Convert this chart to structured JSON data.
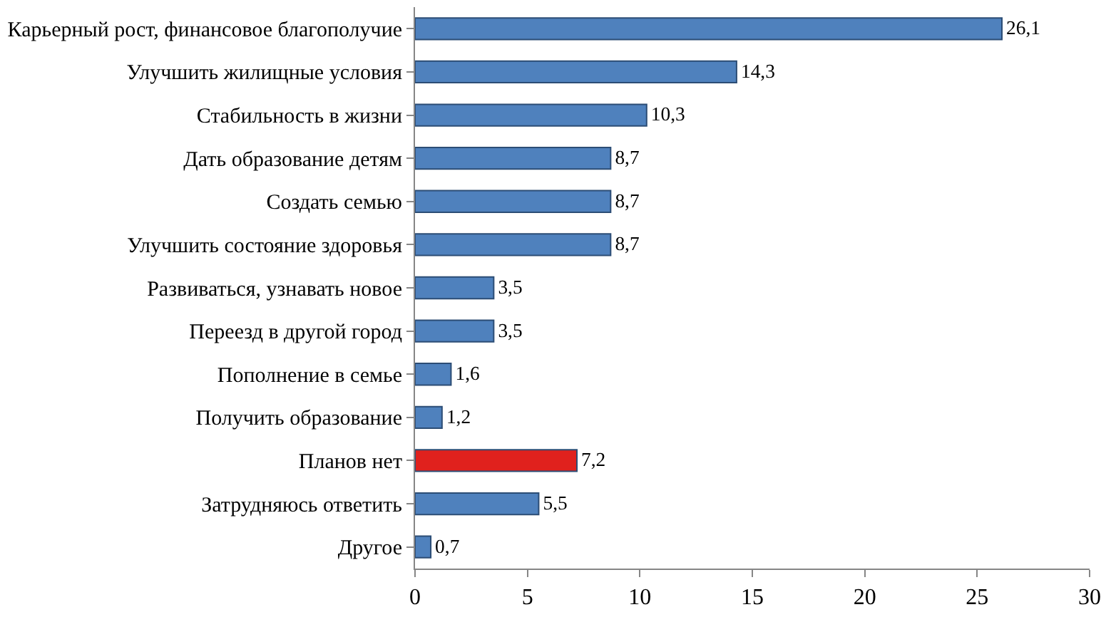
{
  "chart_data": {
    "type": "bar",
    "orientation": "horizontal",
    "categories": [
      "Карьерный рост, финансовое благополучие",
      "Улучшить жилищные условия",
      "Стабильность в жизни",
      "Дать образование детям",
      "Создать семью",
      "Улучшить состояние здоровья",
      "Развиваться, узнавать новое",
      "Переезд в другой город",
      "Пополнение в семье",
      "Получить образование",
      "Планов нет",
      "Затрудняюсь ответить",
      "Другое"
    ],
    "values": [
      26.1,
      14.3,
      10.3,
      8.7,
      8.7,
      8.7,
      3.5,
      3.5,
      1.6,
      1.2,
      7.2,
      5.5,
      0.7
    ],
    "value_labels": [
      "26,1",
      "14,3",
      "10,3",
      "8,7",
      "8,7",
      "8,7",
      "3,5",
      "3,5",
      "1,6",
      "1,2",
      "7,2",
      "5,5",
      "0,7"
    ],
    "colors": [
      "#4f81bd",
      "#4f81bd",
      "#4f81bd",
      "#4f81bd",
      "#4f81bd",
      "#4f81bd",
      "#4f81bd",
      "#4f81bd",
      "#4f81bd",
      "#4f81bd",
      "#e0211d",
      "#4f81bd",
      "#4f81bd"
    ],
    "xlim": [
      0,
      30
    ],
    "xticks": [
      0,
      5,
      10,
      15,
      20,
      25,
      30
    ],
    "legend": false
  }
}
